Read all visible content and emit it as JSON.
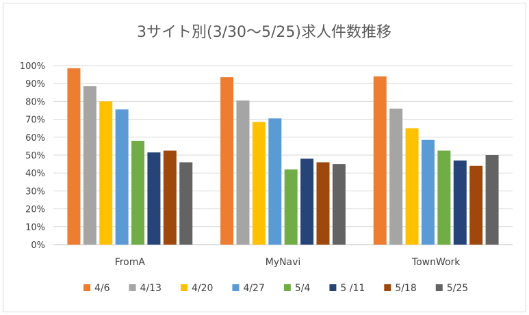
{
  "chart_data": {
    "type": "bar",
    "title": "3サイト別(3/30～5/25)求人件数推移",
    "categories": [
      "FromA",
      "MyNavi",
      "TownWork"
    ],
    "ylim": [
      0,
      100
    ],
    "yticks": [
      "0%",
      "10%",
      "20%",
      "30%",
      "40%",
      "50%",
      "60%",
      "70%",
      "80%",
      "90%",
      "100%"
    ],
    "grid": true,
    "legend_position": "bottom",
    "series": [
      {
        "name": "4/6",
        "color": "#ED7D31",
        "values": [
          98.5,
          93.5,
          94
        ]
      },
      {
        "name": "4/13",
        "color": "#A5A5A5",
        "values": [
          88.5,
          80.5,
          76
        ]
      },
      {
        "name": "4/20",
        "color": "#FFC000",
        "values": [
          80,
          68.5,
          65
        ]
      },
      {
        "name": "4/27",
        "color": "#5B9BD5",
        "values": [
          75.5,
          70.5,
          58.5
        ]
      },
      {
        "name": "5/4",
        "color": "#70AD47",
        "values": [
          58,
          42,
          52.5
        ]
      },
      {
        "name": "5 /11",
        "color": "#264478",
        "values": [
          51.5,
          48,
          47
        ]
      },
      {
        "name": "5/18",
        "color": "#9E480E",
        "values": [
          52.5,
          46,
          44
        ]
      },
      {
        "name": "5/25",
        "color": "#636363",
        "values": [
          46,
          45,
          50
        ]
      }
    ]
  }
}
